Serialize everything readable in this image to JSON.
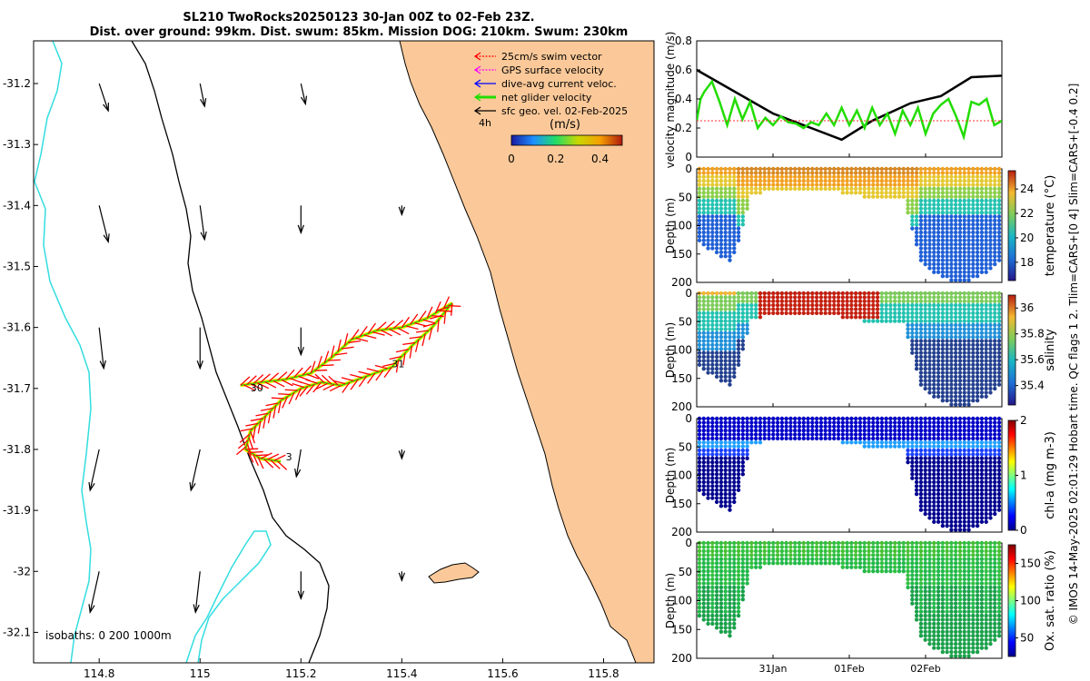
{
  "title": {
    "line1": "SL210 TwoRocks20250123 30-Jan 00Z to 02-Feb 23Z.",
    "line2": "Dist. over ground: 99km. Dist. swum: 85km. Mission DOG: 210km. Swum: 230km"
  },
  "side_note": "© IMOS 14-May-2025 02:01:29 Hobart time. QC flags 1  2. Tlim=CARS+[0 4] Slim=CARS+[-0.4 0.2]",
  "colors": {
    "land": "#fbc999",
    "isobath_200": "#000000",
    "isobath_1000": "#33dde0",
    "glider_track": "#ffee00",
    "swim_vector": "#ff0000",
    "net_velocity": "#22dd00",
    "velocity_black": "#000000",
    "swim_ref": "#ff3333"
  },
  "chart_data": [
    {
      "type": "map",
      "name": "glider-track-map",
      "xlim": [
        114.67,
        115.9
      ],
      "ylim": [
        -32.15,
        -31.13
      ],
      "xticks": [
        114.8,
        115,
        115.2,
        115.4,
        115.6,
        115.8
      ],
      "xtick_labels": [
        "114.8",
        "115",
        "115.2",
        "115.4",
        "115.6",
        "115.8"
      ],
      "yticks": [
        -31.2,
        -31.3,
        -31.4,
        -31.5,
        -31.6,
        -31.7,
        -31.8,
        -31.9,
        -32,
        -32.1
      ],
      "ytick_labels": [
        "-31.2",
        "-31.3",
        "-31.4",
        "-31.5",
        "-31.6",
        "-31.7",
        "-31.8",
        "-31.9",
        "-32",
        "-32.1"
      ],
      "legend": [
        {
          "label": "25cm/s swim vector",
          "color": "#ff0000",
          "style": "dotted"
        },
        {
          "label": "GPS surface velocity",
          "color": "#ff00ff",
          "style": "dotted"
        },
        {
          "label": "dive-avg current veloc.",
          "color": "#0000ff",
          "style": "solid"
        },
        {
          "label": "net glider velocity",
          "color": "#22dd00",
          "style": "thick"
        },
        {
          "label": "sfc geo. vel. 02-Feb-2025",
          "color": "#000000",
          "style": "solid"
        }
      ],
      "legend_extra": "4h",
      "colorbar": {
        "title": "(m/s)",
        "ticks": [
          "0",
          "0.2",
          "0.4"
        ],
        "range": [
          0,
          0.5
        ]
      },
      "day_labels": [
        {
          "text": "30",
          "lon": 115.1,
          "lat": -31.705
        },
        {
          "text": "31",
          "lon": 115.38,
          "lat": -31.665
        },
        {
          "text": "3",
          "lon": 115.17,
          "lat": -31.818
        }
      ],
      "isobaths_label": "isobaths: 0   200  1000m",
      "geo_vectors": [
        {
          "lon": 114.8,
          "lat": -31.2,
          "u": 0.02,
          "v": -0.06
        },
        {
          "lon": 115.0,
          "lat": -31.2,
          "u": 0.01,
          "v": -0.05
        },
        {
          "lon": 115.2,
          "lat": -31.2,
          "u": 0.01,
          "v": -0.045
        },
        {
          "lon": 114.8,
          "lat": -31.4,
          "u": 0.02,
          "v": -0.08
        },
        {
          "lon": 115.0,
          "lat": -31.4,
          "u": 0.01,
          "v": -0.075
        },
        {
          "lon": 115.2,
          "lat": -31.4,
          "u": 0.0,
          "v": -0.06
        },
        {
          "lon": 115.4,
          "lat": -31.4,
          "u": 0.0,
          "v": -0.02
        },
        {
          "lon": 114.8,
          "lat": -31.6,
          "u": 0.01,
          "v": -0.09
        },
        {
          "lon": 115.0,
          "lat": -31.6,
          "u": 0.0,
          "v": -0.09
        },
        {
          "lon": 115.2,
          "lat": -31.6,
          "u": 0.0,
          "v": -0.06
        },
        {
          "lon": 114.8,
          "lat": -31.8,
          "u": -0.02,
          "v": -0.09
        },
        {
          "lon": 115.0,
          "lat": -31.8,
          "u": -0.02,
          "v": -0.09
        },
        {
          "lon": 115.2,
          "lat": -31.8,
          "u": -0.01,
          "v": -0.06
        },
        {
          "lon": 115.4,
          "lat": -31.8,
          "u": 0.0,
          "v": -0.02
        },
        {
          "lon": 114.8,
          "lat": -32.0,
          "u": -0.02,
          "v": -0.09
        },
        {
          "lon": 115.0,
          "lat": -32.0,
          "u": -0.01,
          "v": -0.09
        },
        {
          "lon": 115.2,
          "lat": -32.0,
          "u": 0.0,
          "v": -0.06
        },
        {
          "lon": 115.4,
          "lat": -32.0,
          "u": 0.0,
          "v": -0.02
        }
      ],
      "track_loop": [
        [
          115.08,
          -31.695
        ],
        [
          115.12,
          -31.69
        ],
        [
          115.17,
          -31.685
        ],
        [
          115.22,
          -31.675
        ],
        [
          115.26,
          -31.65
        ],
        [
          115.3,
          -31.62
        ],
        [
          115.35,
          -31.605
        ],
        [
          115.4,
          -31.6
        ],
        [
          115.45,
          -31.585
        ],
        [
          115.5,
          -31.56
        ],
        [
          115.46,
          -31.6
        ],
        [
          115.42,
          -31.63
        ],
        [
          115.38,
          -31.665
        ],
        [
          115.33,
          -31.68
        ],
        [
          115.28,
          -31.695
        ],
        [
          115.24,
          -31.69
        ],
        [
          115.2,
          -31.7
        ],
        [
          115.16,
          -31.72
        ],
        [
          115.13,
          -31.745
        ],
        [
          115.1,
          -31.77
        ],
        [
          115.09,
          -31.8
        ],
        [
          115.12,
          -31.815
        ],
        [
          115.16,
          -31.82
        ]
      ]
    },
    {
      "type": "line",
      "name": "velocity-magnitude",
      "ylabel": "velocity magnitude (m/s)",
      "ylim": [
        0,
        0.8
      ],
      "yticks": [
        "0",
        "0.2",
        "0.4",
        "0.6",
        "0.8"
      ],
      "x_days": [
        0,
        4
      ],
      "series": [
        {
          "name": "sfc geo velocity",
          "color": "#000000",
          "x": [
            0,
            0.5,
            1.0,
            1.5,
            1.9,
            2.3,
            2.8,
            3.2,
            3.6,
            4.0
          ],
          "values": [
            0.6,
            0.45,
            0.3,
            0.2,
            0.12,
            0.25,
            0.37,
            0.42,
            0.55,
            0.56
          ]
        },
        {
          "name": "net glider velocity",
          "color": "#22dd00",
          "x": [
            0,
            0.05,
            0.1,
            0.2,
            0.3,
            0.4,
            0.5,
            0.6,
            0.7,
            0.8,
            0.9,
            1.0,
            1.1,
            1.2,
            1.3,
            1.4,
            1.5,
            1.6,
            1.7,
            1.8,
            1.9,
            2.0,
            2.1,
            2.2,
            2.3,
            2.4,
            2.5,
            2.6,
            2.7,
            2.8,
            2.9,
            3.0,
            3.1,
            3.2,
            3.3,
            3.4,
            3.5,
            3.6,
            3.7,
            3.8,
            3.9,
            4.0
          ],
          "values": [
            0.25,
            0.4,
            0.45,
            0.52,
            0.38,
            0.22,
            0.4,
            0.26,
            0.38,
            0.2,
            0.27,
            0.22,
            0.28,
            0.24,
            0.23,
            0.2,
            0.24,
            0.22,
            0.3,
            0.22,
            0.34,
            0.22,
            0.32,
            0.2,
            0.34,
            0.22,
            0.3,
            0.16,
            0.32,
            0.22,
            0.34,
            0.16,
            0.3,
            0.36,
            0.4,
            0.28,
            0.14,
            0.38,
            0.36,
            0.4,
            0.22,
            0.25
          ]
        },
        {
          "name": "25cm/s swim reference",
          "color": "#ff3333",
          "x": [
            0,
            4
          ],
          "values": [
            0.25,
            0.25
          ]
        }
      ]
    },
    {
      "type": "heatmap",
      "name": "temperature-section",
      "ylabel": "Depth (m)",
      "cblabel": "temperature (°C)",
      "yticks": [
        "0",
        "50",
        "100",
        "150",
        "200"
      ],
      "cbticks": [
        "18",
        "20",
        "22",
        "24"
      ],
      "clim": [
        16.5,
        25.5
      ]
    },
    {
      "type": "heatmap",
      "name": "salinity-section",
      "ylabel": "Depth (m)",
      "cblabel": "salinity",
      "yticks": [
        "0",
        "50",
        "100",
        "150",
        "200"
      ],
      "cbticks": [
        "35.4",
        "35.6",
        "35.8",
        "36"
      ],
      "clim": [
        35.25,
        36.1
      ]
    },
    {
      "type": "heatmap",
      "name": "chla-section",
      "ylabel": "Depth (m)",
      "cblabel": "chl-a (mg m-3)",
      "yticks": [
        "0",
        "50",
        "100",
        "150",
        "200"
      ],
      "cbticks": [
        "0",
        "1",
        "2"
      ],
      "clim": [
        0,
        2
      ]
    },
    {
      "type": "heatmap",
      "name": "oxygen-section",
      "ylabel": "Depth (m)",
      "cblabel": "Ox. sat. ratio (%)",
      "yticks": [
        "0",
        "50",
        "100",
        "150",
        "200"
      ],
      "cbticks": [
        "50",
        "100",
        "150"
      ],
      "clim": [
        25,
        175
      ],
      "xtick_labels": [
        "31Jan",
        "01Feb",
        "02Feb"
      ],
      "xtick_days": [
        1,
        2,
        3
      ]
    }
  ]
}
